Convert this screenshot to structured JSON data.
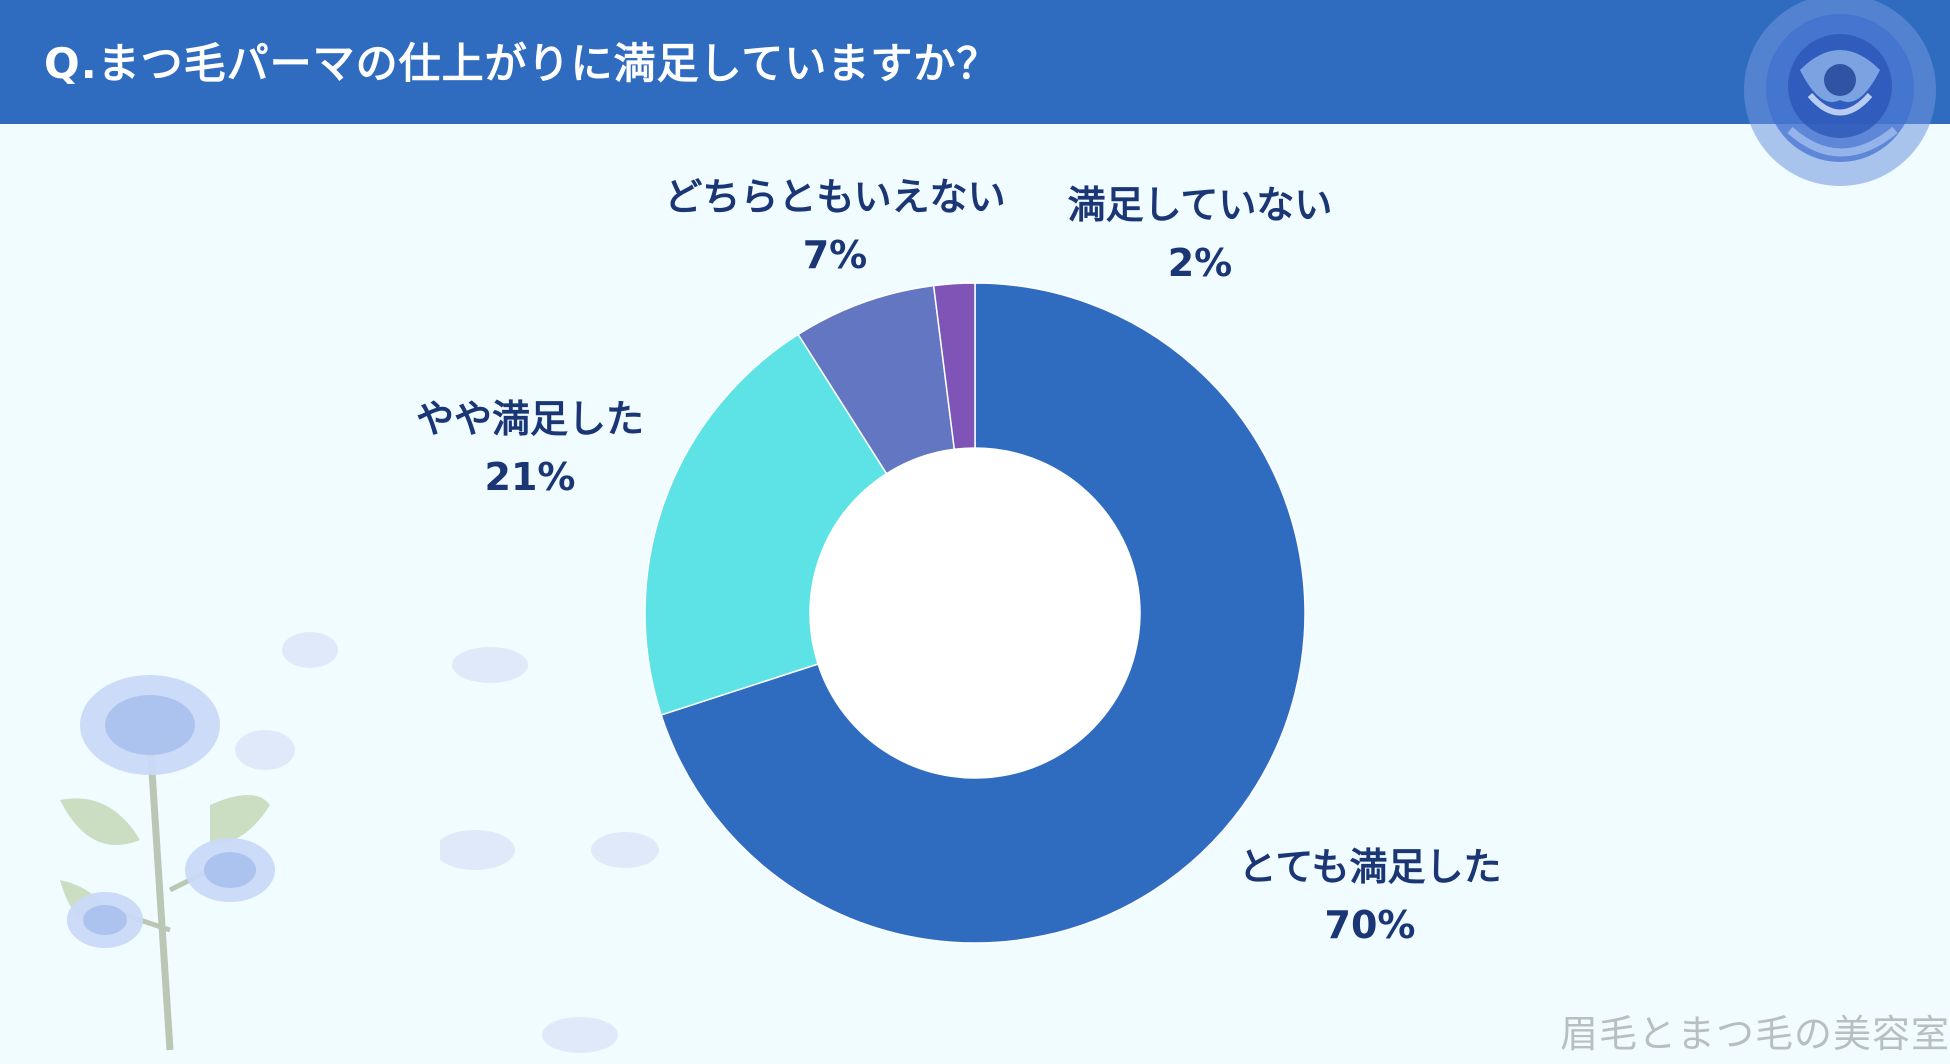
{
  "header": {
    "title": "Q.まつ毛パーマの仕上がりに満足していますか？"
  },
  "chart_data": {
    "type": "pie",
    "donut": true,
    "title": "Q.まつ毛パーマの仕上がりに満足していますか？",
    "slices": [
      {
        "label": "とても満足した",
        "value": 70,
        "display": "70%",
        "color": "#2f6cc0"
      },
      {
        "label": "やや満足した",
        "value": 21,
        "display": "21%",
        "color": "#5de3e6"
      },
      {
        "label": "どちらともいえない",
        "value": 7,
        "display": "7%",
        "color": "#6276c1"
      },
      {
        "label": "満足していない",
        "value": 2,
        "display": "2%",
        "color": "#7e54b6"
      }
    ],
    "legend": "labels-outside"
  },
  "watermark": "眉毛とまつ毛の美容室"
}
